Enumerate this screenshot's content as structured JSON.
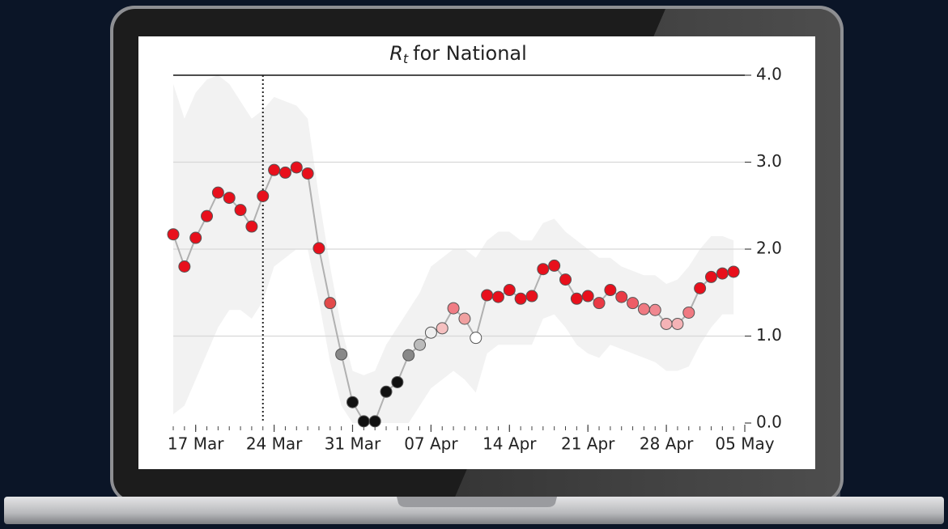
{
  "chart_data": {
    "type": "line",
    "title": [
      "R",
      "t",
      "for National"
    ],
    "x": [
      "15 Mar",
      "16 Mar",
      "17 Mar",
      "18 Mar",
      "19 Mar",
      "20 Mar",
      "21 Mar",
      "22 Mar",
      "23 Mar",
      "24 Mar",
      "25 Mar",
      "26 Mar",
      "27 Mar",
      "28 Mar",
      "29 Mar",
      "30 Mar",
      "31 Mar",
      "01 Apr",
      "02 Apr",
      "03 Apr",
      "04 Apr",
      "05 Apr",
      "06 Apr",
      "07 Apr",
      "08 Apr",
      "09 Apr",
      "10 Apr",
      "11 Apr",
      "12 Apr",
      "13 Apr",
      "14 Apr",
      "15 Apr",
      "16 Apr",
      "17 Apr",
      "18 Apr",
      "19 Apr",
      "20 Apr",
      "21 Apr",
      "22 Apr",
      "23 Apr",
      "24 Apr",
      "25 Apr",
      "26 Apr",
      "27 Apr",
      "28 Apr",
      "29 Apr",
      "30 Apr",
      "01 May",
      "02 May",
      "03 May",
      "04 May"
    ],
    "values": [
      2.17,
      1.8,
      2.13,
      2.38,
      2.65,
      2.59,
      2.45,
      2.26,
      2.61,
      2.91,
      2.88,
      2.94,
      2.87,
      2.01,
      1.38,
      0.79,
      0.24,
      0.02,
      0.02,
      0.36,
      0.47,
      0.78,
      0.9,
      1.04,
      1.09,
      1.32,
      1.2,
      0.98,
      1.47,
      1.45,
      1.53,
      1.43,
      1.46,
      1.77,
      1.81,
      1.65,
      1.43,
      1.46,
      1.38,
      1.53,
      1.45,
      1.38,
      1.31,
      1.3,
      1.14,
      1.14,
      1.27,
      1.55,
      1.68,
      1.72,
      1.74
    ],
    "lower": [
      0.1,
      0.2,
      0.5,
      0.8,
      1.1,
      1.3,
      1.3,
      1.2,
      1.4,
      1.8,
      1.9,
      2.0,
      2.0,
      1.4,
      0.7,
      0.2,
      0,
      0,
      0,
      0,
      0,
      0,
      0.2,
      0.4,
      0.5,
      0.6,
      0.5,
      0.35,
      0.8,
      0.9,
      0.9,
      0.9,
      0.9,
      1.2,
      1.25,
      1.1,
      0.9,
      0.8,
      0.75,
      0.9,
      0.85,
      0.8,
      0.75,
      0.7,
      0.6,
      0.6,
      0.65,
      0.9,
      1.1,
      1.25,
      1.25
    ],
    "upper": [
      3.9,
      3.5,
      3.8,
      3.95,
      4.0,
      3.9,
      3.7,
      3.5,
      3.6,
      3.75,
      3.7,
      3.65,
      3.5,
      2.6,
      1.8,
      1.1,
      0.6,
      0.55,
      0.6,
      0.9,
      1.1,
      1.3,
      1.5,
      1.8,
      1.9,
      2.0,
      2.0,
      1.9,
      2.1,
      2.2,
      2.2,
      2.1,
      2.1,
      2.3,
      2.35,
      2.2,
      2.1,
      2.0,
      1.9,
      1.9,
      1.8,
      1.75,
      1.7,
      1.7,
      1.6,
      1.65,
      1.8,
      2.0,
      2.15,
      2.15,
      2.1
    ],
    "point_colors": [
      "#e8101c",
      "#e8101c",
      "#e8101c",
      "#e8101c",
      "#e8101c",
      "#e8101c",
      "#e8101c",
      "#e8101c",
      "#e8101c",
      "#e8101c",
      "#e8101c",
      "#e8101c",
      "#e8101c",
      "#e8101c",
      "#e24a4a",
      "#888888",
      "#111111",
      "#111111",
      "#111111",
      "#111111",
      "#111111",
      "#888888",
      "#bbbbbb",
      "#eeeeee",
      "#f5c0c0",
      "#f07c84",
      "#f0a0a0",
      "#ffffff",
      "#e8101c",
      "#e8101c",
      "#e8101c",
      "#e8101c",
      "#e8101c",
      "#e8101c",
      "#e8101c",
      "#e8101c",
      "#e8101c",
      "#e8101c",
      "#ea3a45",
      "#e8101c",
      "#ea3a45",
      "#ee5c66",
      "#f07a82",
      "#f08890",
      "#f4b3b6",
      "#f4b3b6",
      "#f07a82",
      "#e8101c",
      "#e8101c",
      "#e8101c",
      "#e8101c"
    ],
    "line_color": "#b0b0b0",
    "band_color": "#f2f2f2",
    "vline": "23 Mar",
    "xlim": [
      "15 Mar",
      "05 May"
    ],
    "xticks": [
      "17 Mar",
      "24 Mar",
      "31 Mar",
      "07 Apr",
      "14 Apr",
      "21 Apr",
      "28 Apr",
      "05 May"
    ],
    "ylim": [
      0,
      4
    ],
    "yticks": [
      {
        "value": 0,
        "label": "0.0"
      },
      {
        "value": 1,
        "label": "1.0"
      },
      {
        "value": 2,
        "label": "2.0"
      },
      {
        "value": 3,
        "label": "3.0"
      },
      {
        "value": 4,
        "label": "4.0"
      }
    ],
    "grid": true
  }
}
